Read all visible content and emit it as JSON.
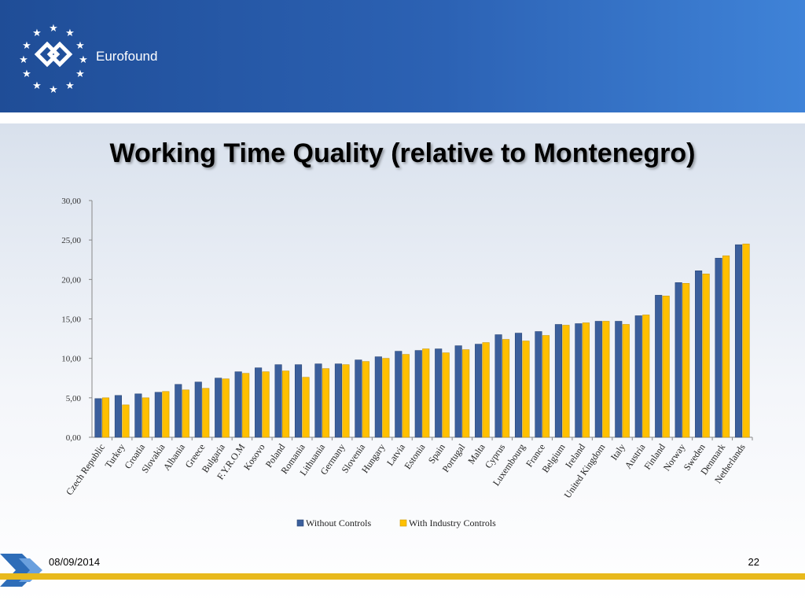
{
  "header": {
    "brand": "Eurofound",
    "colors": {
      "band_start": "#1f4d97",
      "band_end": "#3f83d8"
    }
  },
  "slide": {
    "title": "Working Time Quality (relative to Montenegro)",
    "date": "08/09/2014",
    "page_number": "22"
  },
  "chart_data": {
    "type": "bar",
    "title": "",
    "xlabel": "",
    "ylabel": "",
    "ylim": [
      0,
      30
    ],
    "y_ticks": [
      "0,00",
      "5,00",
      "10,00",
      "15,00",
      "20,00",
      "25,00",
      "30,00"
    ],
    "grid": false,
    "legend_position": "bottom",
    "categories": [
      "Czech Republic",
      "Turkey",
      "Croatia",
      "Slovakia",
      "Albania",
      "Greece",
      "Bulgaria",
      "F.Y.R.O.M",
      "Kosovo",
      "Poland",
      "Romania",
      "Lithuania",
      "Germany",
      "Slovenia",
      "Hungary",
      "Latvia",
      "Estonia",
      "Spain",
      "Portugal",
      "Malta",
      "Cyprus",
      "Luxembourg",
      "France",
      "Belgium",
      "Ireland",
      "United Kingdom",
      "Italy",
      "Austria",
      "Finland",
      "Norway",
      "Sweden",
      "Denmark",
      "Netherlands"
    ],
    "series": [
      {
        "name": "Without Controls",
        "color": "#3b5f9c",
        "values": [
          4.9,
          5.3,
          5.5,
          5.7,
          6.7,
          7.0,
          7.5,
          8.3,
          8.8,
          9.2,
          9.2,
          9.3,
          9.3,
          9.8,
          10.2,
          10.9,
          11.0,
          11.2,
          11.6,
          11.8,
          13.0,
          13.2,
          13.4,
          14.3,
          14.4,
          14.7,
          14.7,
          15.4,
          18.0,
          19.6,
          21.1,
          22.7,
          24.4
        ]
      },
      {
        "name": "With Industry Controls",
        "color": "#ffc000",
        "values": [
          5.0,
          4.1,
          5.0,
          5.8,
          6.0,
          6.2,
          7.4,
          8.1,
          8.3,
          8.4,
          7.6,
          8.7,
          9.2,
          9.6,
          10.0,
          10.5,
          11.2,
          10.7,
          11.1,
          12.0,
          12.4,
          12.2,
          12.9,
          14.2,
          14.5,
          14.7,
          14.3,
          15.5,
          17.9,
          19.5,
          20.7,
          23.0,
          24.5
        ]
      }
    ]
  }
}
